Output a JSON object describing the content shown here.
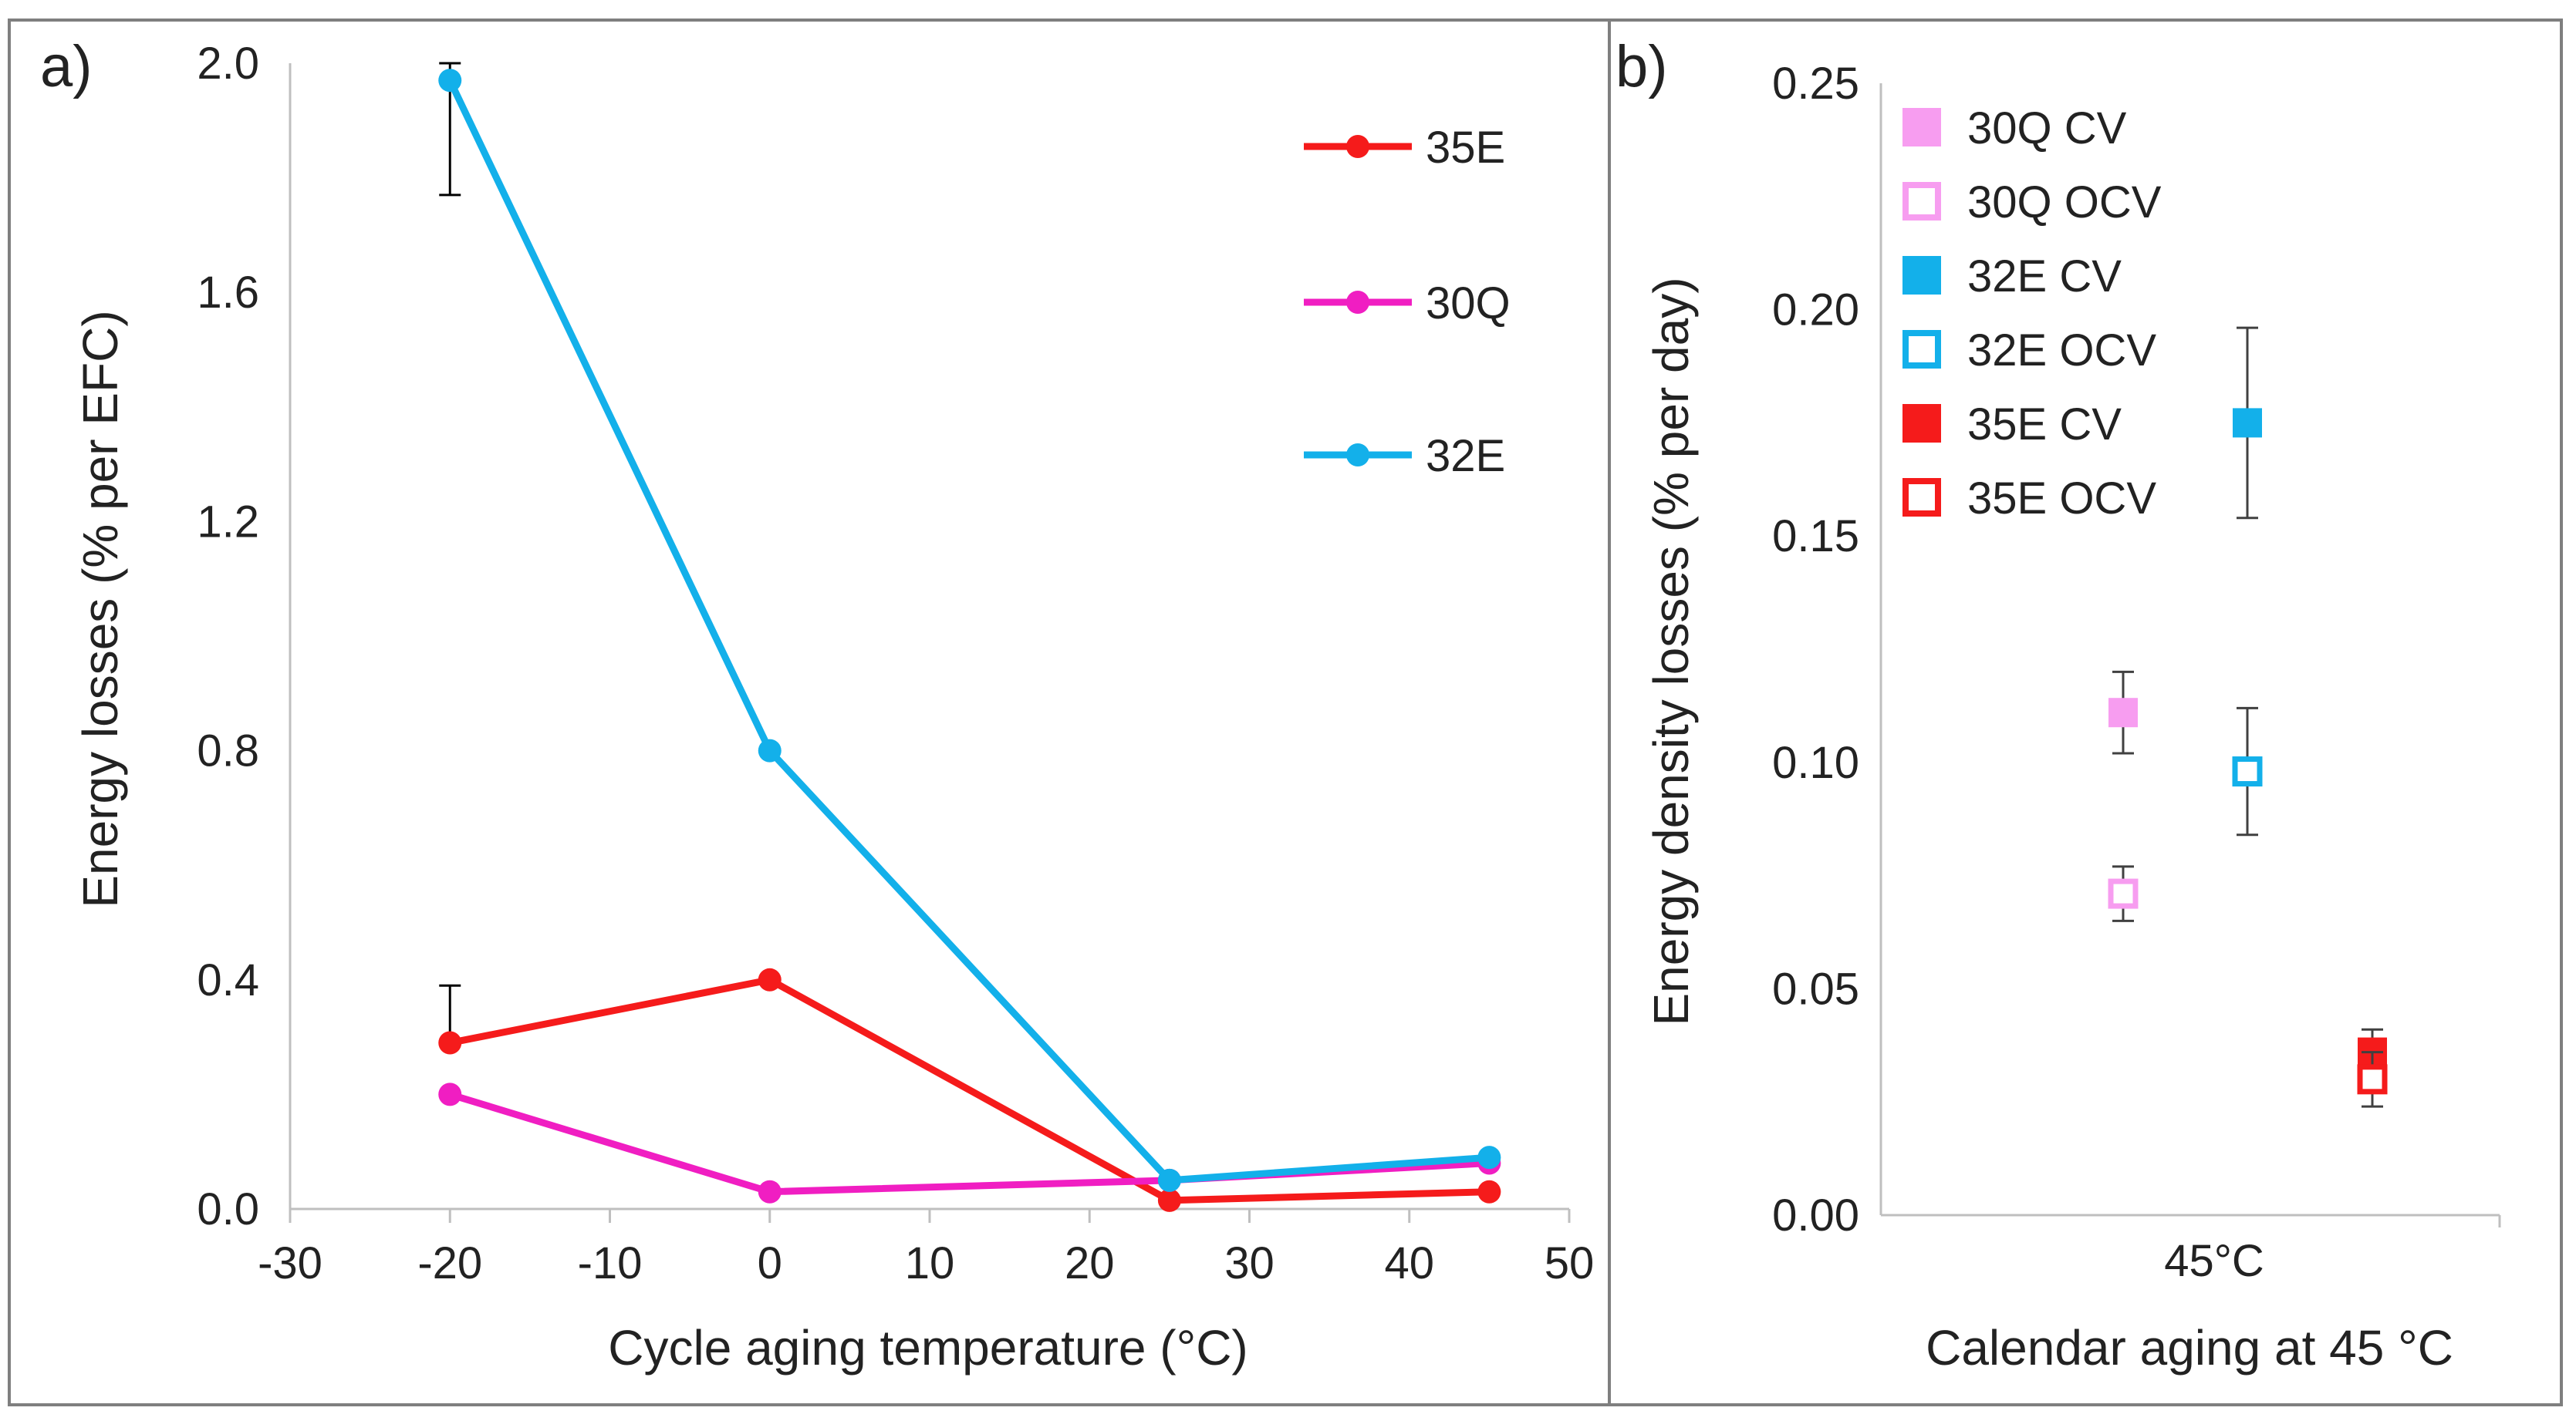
{
  "chart_data": [
    {
      "panel_label": "a)",
      "type": "line",
      "title": "",
      "xlabel": "Cycle aging temperature (°C)",
      "ylabel": "Energy losses (% per EFC)",
      "xlim": [
        -30,
        50
      ],
      "ylim": [
        0,
        2.0
      ],
      "x_ticks": [
        -30,
        -20,
        -10,
        0,
        10,
        20,
        30,
        40,
        50
      ],
      "x_tick_labels": [
        "-30",
        "-20",
        "-10",
        "0",
        "10",
        "20",
        "30",
        "40",
        "50"
      ],
      "y_ticks": [
        0,
        0.4,
        0.8,
        1.2,
        1.6,
        2.0
      ],
      "y_tick_labels": [
        "0.0",
        "0.4",
        "0.8",
        "1.2",
        "1.6",
        "2.0"
      ],
      "grid": false,
      "legend_position": "top-right",
      "series": [
        {
          "name": "35E",
          "color": "#f51b1b",
          "x": [
            -20,
            0,
            25,
            45
          ],
          "y": [
            0.29,
            0.4,
            0.015,
            0.03
          ],
          "err_plus": [
            0.1,
            0,
            0,
            0
          ],
          "err_minus": [
            0,
            0,
            0,
            0
          ]
        },
        {
          "name": "30Q",
          "color": "#f01ec2",
          "x": [
            -20,
            0,
            25,
            45
          ],
          "y": [
            0.2,
            0.03,
            0.05,
            0.08
          ],
          "err_plus": [
            0,
            0,
            0,
            0
          ],
          "err_minus": [
            0,
            0,
            0,
            0
          ]
        },
        {
          "name": "32E",
          "color": "#13b0ea",
          "x": [
            -20,
            0,
            25,
            45
          ],
          "y": [
            1.97,
            0.8,
            0.05,
            0.09
          ],
          "err_plus": [
            0.03,
            0,
            0,
            0
          ],
          "err_minus": [
            0.2,
            0,
            0,
            0
          ]
        }
      ]
    },
    {
      "panel_label": "b)",
      "type": "scatter",
      "title": "",
      "xlabel": "Calendar aging at 45 °C",
      "ylabel": "Energy density losses (% per day)",
      "x_tick_label": "45°C",
      "ylim": [
        0,
        0.25
      ],
      "y_ticks": [
        0,
        0.05,
        0.1,
        0.15,
        0.2,
        0.25
      ],
      "y_tick_labels": [
        "0.00",
        "0.05",
        "0.10",
        "0.15",
        "0.20",
        "0.25"
      ],
      "grid": false,
      "legend_position": "top-left",
      "series": [
        {
          "name": "30Q CV",
          "color": "#f79df0",
          "filled": true,
          "y": 0.111,
          "err_plus": 0.009,
          "err_minus": 0.009
        },
        {
          "name": "30Q OCV",
          "color": "#f79df0",
          "filled": false,
          "y": 0.071,
          "err_plus": 0.006,
          "err_minus": 0.006
        },
        {
          "name": "32E CV",
          "color": "#13b0ea",
          "filled": true,
          "y": 0.175,
          "err_plus": 0.021,
          "err_minus": 0.021
        },
        {
          "name": "32E OCV",
          "color": "#13b0ea",
          "filled": false,
          "y": 0.098,
          "err_plus": 0.014,
          "err_minus": 0.014
        },
        {
          "name": "35E CV",
          "color": "#f51b1b",
          "filled": true,
          "y": 0.036,
          "err_plus": 0.005,
          "err_minus": 0.005
        },
        {
          "name": "35E OCV",
          "color": "#f51b1b",
          "filled": false,
          "y": 0.03,
          "err_plus": 0.006,
          "err_minus": 0.006
        }
      ]
    }
  ]
}
